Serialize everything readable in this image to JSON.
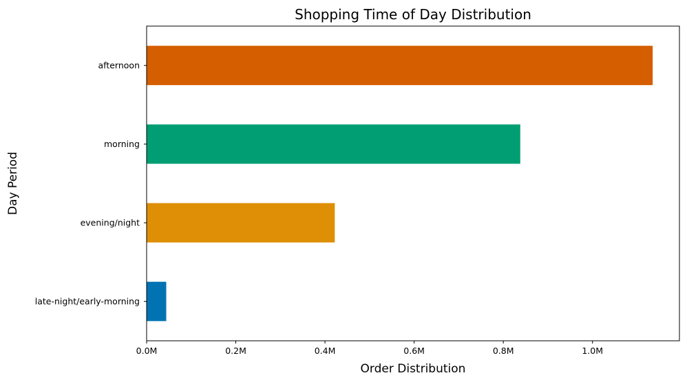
{
  "chart_data": {
    "type": "bar",
    "orientation": "horizontal",
    "title": "Shopping Time of Day Distribution",
    "xlabel": "Order Distribution",
    "ylabel": "Day Period",
    "categories": [
      "afternoon",
      "morning",
      "evening/night",
      "late-night/early-morning"
    ],
    "values": [
      1135000,
      838000,
      422000,
      44000
    ],
    "colors": [
      "#d55e00",
      "#029e73",
      "#de8f05",
      "#0173b2"
    ],
    "xlim": [
      0,
      1195000
    ],
    "xticks": [
      0,
      200000,
      400000,
      600000,
      800000,
      1000000
    ],
    "xtick_labels": [
      "0.0M",
      "0.2M",
      "0.4M",
      "0.6M",
      "0.8M",
      "1.0M"
    ],
    "grid": false,
    "legend": "none"
  }
}
